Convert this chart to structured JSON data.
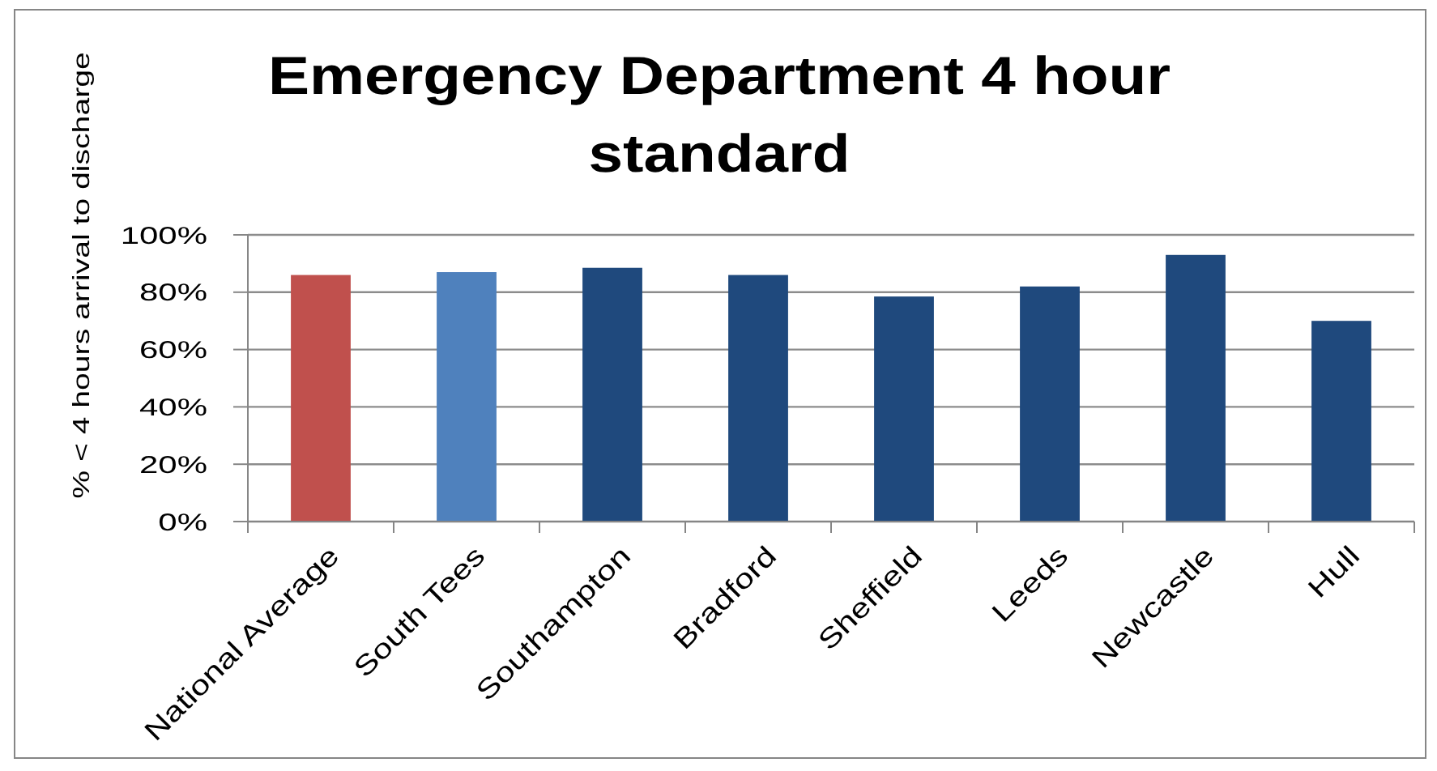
{
  "chart_data": {
    "type": "bar",
    "title": "Emergency Department 4 hour standard",
    "ylabel": "% < 4 hours arrival to discharge",
    "categories": [
      "National Average",
      "South Tees",
      "Southampton",
      "Bradford",
      "Sheffield",
      "Leeds",
      "Newcastle",
      "Hull"
    ],
    "values": [
      86,
      87,
      88.5,
      86,
      78.5,
      82,
      93,
      70
    ],
    "colors": [
      "#c0504d",
      "#4f81bd",
      "#1f497d",
      "#1f497d",
      "#1f497d",
      "#1f497d",
      "#1f497d",
      "#1f497d"
    ],
    "ylim": [
      0,
      100
    ],
    "yticks": [
      {
        "value": 0,
        "label": "0%"
      },
      {
        "value": 20,
        "label": "20%"
      },
      {
        "value": 40,
        "label": "40%"
      },
      {
        "value": 60,
        "label": "60%"
      },
      {
        "value": 80,
        "label": "80%"
      },
      {
        "value": 100,
        "label": "100%"
      }
    ],
    "grid": "y"
  }
}
